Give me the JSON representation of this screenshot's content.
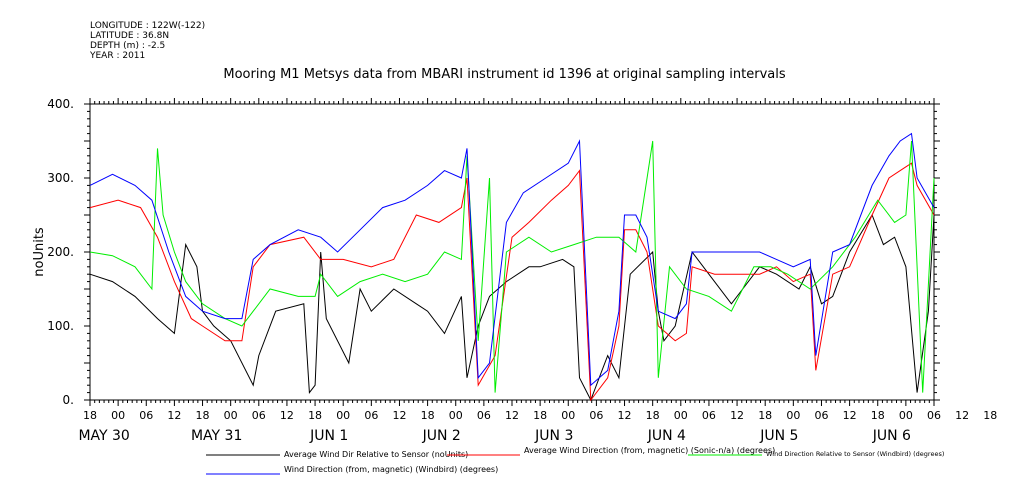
{
  "header": {
    "longitude": "LONGITUDE : 122W(-122)",
    "latitude": "LATITUDE : 36.8N",
    "depth": "DEPTH (m) : -2.5",
    "year": "YEAR : 2011"
  },
  "chart_data": {
    "type": "line",
    "title": "Mooring M1 Metsys data from MBARI instrument id 1396 at original sampling intervals",
    "ylabel": "noUnits",
    "ylim": [
      0,
      400
    ],
    "yticks": [
      0,
      100,
      200,
      300,
      400
    ],
    "xlim": [
      0,
      7.5
    ],
    "hour_ticks": [
      "18",
      "00",
      "06",
      "12",
      "18",
      "00",
      "06",
      "12",
      "18",
      "00",
      "06",
      "12",
      "18",
      "00",
      "06",
      "12",
      "18",
      "00",
      "06",
      "12",
      "18",
      "00",
      "06",
      "12",
      "18",
      "00",
      "06",
      "12",
      "18",
      "00",
      "06",
      "12",
      "18"
    ],
    "date_labels": [
      {
        "label": "MAY 30",
        "at": 0.25
      },
      {
        "label": "MAY 31",
        "at": 1.25
      },
      {
        "label": "JUN  1",
        "at": 2.25
      },
      {
        "label": "JUN  2",
        "at": 3.25
      },
      {
        "label": "JUN  3",
        "at": 4.25
      },
      {
        "label": "JUN  4",
        "at": 5.25
      },
      {
        "label": "JUN  5",
        "at": 6.25
      },
      {
        "label": "JUN  6",
        "at": 7.25
      }
    ],
    "x_unit": "days since May 29 18:00",
    "series": [
      {
        "name": "Average Wind Dir Relative to Sensor (noUnits)",
        "color": "#000000",
        "points": [
          [
            0,
            170
          ],
          [
            0.2,
            160
          ],
          [
            0.4,
            140
          ],
          [
            0.6,
            110
          ],
          [
            0.75,
            90
          ],
          [
            0.85,
            210
          ],
          [
            0.95,
            180
          ],
          [
            1.0,
            120
          ],
          [
            1.1,
            100
          ],
          [
            1.25,
            80
          ],
          [
            1.45,
            20
          ],
          [
            1.5,
            60
          ],
          [
            1.65,
            120
          ],
          [
            1.9,
            130
          ],
          [
            1.95,
            10
          ],
          [
            2.0,
            20
          ],
          [
            2.05,
            200
          ],
          [
            2.1,
            110
          ],
          [
            2.3,
            50
          ],
          [
            2.4,
            150
          ],
          [
            2.5,
            120
          ],
          [
            2.7,
            150
          ],
          [
            2.9,
            130
          ],
          [
            3.0,
            120
          ],
          [
            3.15,
            90
          ],
          [
            3.3,
            140
          ],
          [
            3.35,
            30
          ],
          [
            3.45,
            100
          ],
          [
            3.55,
            140
          ],
          [
            3.7,
            160
          ],
          [
            3.9,
            180
          ],
          [
            4.0,
            180
          ],
          [
            4.2,
            190
          ],
          [
            4.3,
            180
          ],
          [
            4.35,
            30
          ],
          [
            4.45,
            0
          ],
          [
            4.55,
            40
          ],
          [
            4.6,
            60
          ],
          [
            4.7,
            30
          ],
          [
            4.8,
            170
          ],
          [
            5.0,
            200
          ],
          [
            5.05,
            120
          ],
          [
            5.1,
            80
          ],
          [
            5.2,
            100
          ],
          [
            5.35,
            200
          ],
          [
            5.5,
            170
          ],
          [
            5.7,
            130
          ],
          [
            5.8,
            150
          ],
          [
            5.95,
            180
          ],
          [
            6.1,
            170
          ],
          [
            6.3,
            150
          ],
          [
            6.4,
            180
          ],
          [
            6.5,
            130
          ],
          [
            6.6,
            140
          ],
          [
            6.75,
            200
          ],
          [
            6.95,
            250
          ],
          [
            7.05,
            210
          ],
          [
            7.15,
            220
          ],
          [
            7.25,
            180
          ],
          [
            7.35,
            10
          ],
          [
            7.45,
            120
          ],
          [
            7.5,
            250
          ]
        ]
      },
      {
        "name": "Average Wind Direction (from, magnetic) (Sonic-n/a) (degrees)",
        "color": "#ff0000",
        "points": [
          [
            0,
            260
          ],
          [
            0.25,
            270
          ],
          [
            0.45,
            260
          ],
          [
            0.6,
            220
          ],
          [
            0.75,
            160
          ],
          [
            0.9,
            110
          ],
          [
            1.0,
            100
          ],
          [
            1.2,
            80
          ],
          [
            1.35,
            80
          ],
          [
            1.45,
            180
          ],
          [
            1.6,
            210
          ],
          [
            1.9,
            220
          ],
          [
            2.05,
            190
          ],
          [
            2.25,
            190
          ],
          [
            2.5,
            180
          ],
          [
            2.7,
            190
          ],
          [
            2.9,
            250
          ],
          [
            3.1,
            240
          ],
          [
            3.3,
            260
          ],
          [
            3.35,
            300
          ],
          [
            3.45,
            20
          ],
          [
            3.6,
            60
          ],
          [
            3.75,
            220
          ],
          [
            3.9,
            240
          ],
          [
            4.1,
            270
          ],
          [
            4.25,
            290
          ],
          [
            4.35,
            310
          ],
          [
            4.45,
            0
          ],
          [
            4.6,
            30
          ],
          [
            4.7,
            100
          ],
          [
            4.75,
            230
          ],
          [
            4.85,
            230
          ],
          [
            4.95,
            200
          ],
          [
            5.05,
            100
          ],
          [
            5.2,
            80
          ],
          [
            5.3,
            90
          ],
          [
            5.35,
            180
          ],
          [
            5.55,
            170
          ],
          [
            5.75,
            170
          ],
          [
            5.95,
            170
          ],
          [
            6.1,
            180
          ],
          [
            6.25,
            160
          ],
          [
            6.4,
            170
          ],
          [
            6.45,
            40
          ],
          [
            6.6,
            170
          ],
          [
            6.75,
            180
          ],
          [
            6.95,
            250
          ],
          [
            7.1,
            300
          ],
          [
            7.2,
            310
          ],
          [
            7.3,
            320
          ],
          [
            7.35,
            290
          ],
          [
            7.5,
            250
          ]
        ]
      },
      {
        "name": "Wind Direction Relative to Sensor (Windbird) (degrees)",
        "color": "#00ee00",
        "points": [
          [
            0,
            200
          ],
          [
            0.2,
            195
          ],
          [
            0.4,
            180
          ],
          [
            0.55,
            150
          ],
          [
            0.6,
            340
          ],
          [
            0.65,
            250
          ],
          [
            0.75,
            200
          ],
          [
            0.85,
            160
          ],
          [
            1.0,
            130
          ],
          [
            1.2,
            110
          ],
          [
            1.35,
            100
          ],
          [
            1.45,
            120
          ],
          [
            1.6,
            150
          ],
          [
            1.85,
            140
          ],
          [
            2.0,
            140
          ],
          [
            2.05,
            170
          ],
          [
            2.2,
            140
          ],
          [
            2.4,
            160
          ],
          [
            2.6,
            170
          ],
          [
            2.8,
            160
          ],
          [
            3.0,
            170
          ],
          [
            3.15,
            200
          ],
          [
            3.3,
            190
          ],
          [
            3.35,
            330
          ],
          [
            3.45,
            80
          ],
          [
            3.55,
            300
          ],
          [
            3.6,
            10
          ],
          [
            3.7,
            200
          ],
          [
            3.9,
            220
          ],
          [
            4.1,
            200
          ],
          [
            4.3,
            210
          ],
          [
            4.5,
            220
          ],
          [
            4.7,
            220
          ],
          [
            4.85,
            200
          ],
          [
            5.0,
            350
          ],
          [
            5.05,
            30
          ],
          [
            5.15,
            180
          ],
          [
            5.3,
            150
          ],
          [
            5.5,
            140
          ],
          [
            5.7,
            120
          ],
          [
            5.9,
            180
          ],
          [
            6.05,
            180
          ],
          [
            6.2,
            170
          ],
          [
            6.4,
            150
          ],
          [
            6.6,
            180
          ],
          [
            6.8,
            220
          ],
          [
            7.0,
            270
          ],
          [
            7.15,
            240
          ],
          [
            7.25,
            250
          ],
          [
            7.3,
            350
          ],
          [
            7.4,
            10
          ],
          [
            7.5,
            300
          ]
        ]
      },
      {
        "name": "Wind Direction (from, magnetic) (Windbird) (degrees)",
        "color": "#0000ff",
        "points": [
          [
            0,
            290
          ],
          [
            0.2,
            305
          ],
          [
            0.4,
            290
          ],
          [
            0.55,
            270
          ],
          [
            0.7,
            200
          ],
          [
            0.85,
            140
          ],
          [
            1.0,
            120
          ],
          [
            1.2,
            110
          ],
          [
            1.35,
            110
          ],
          [
            1.45,
            190
          ],
          [
            1.6,
            210
          ],
          [
            1.85,
            230
          ],
          [
            2.05,
            220
          ],
          [
            2.2,
            200
          ],
          [
            2.4,
            230
          ],
          [
            2.6,
            260
          ],
          [
            2.8,
            270
          ],
          [
            3.0,
            290
          ],
          [
            3.15,
            310
          ],
          [
            3.3,
            300
          ],
          [
            3.35,
            340
          ],
          [
            3.45,
            30
          ],
          [
            3.55,
            50
          ],
          [
            3.7,
            240
          ],
          [
            3.85,
            280
          ],
          [
            4.05,
            300
          ],
          [
            4.25,
            320
          ],
          [
            4.35,
            350
          ],
          [
            4.45,
            20
          ],
          [
            4.6,
            40
          ],
          [
            4.7,
            120
          ],
          [
            4.75,
            250
          ],
          [
            4.85,
            250
          ],
          [
            4.95,
            220
          ],
          [
            5.05,
            120
          ],
          [
            5.2,
            110
          ],
          [
            5.3,
            130
          ],
          [
            5.35,
            200
          ],
          [
            5.55,
            200
          ],
          [
            5.75,
            200
          ],
          [
            5.95,
            200
          ],
          [
            6.1,
            190
          ],
          [
            6.25,
            180
          ],
          [
            6.4,
            190
          ],
          [
            6.45,
            60
          ],
          [
            6.6,
            200
          ],
          [
            6.75,
            210
          ],
          [
            6.95,
            290
          ],
          [
            7.1,
            330
          ],
          [
            7.2,
            350
          ],
          [
            7.3,
            360
          ],
          [
            7.35,
            300
          ],
          [
            7.5,
            260
          ]
        ]
      }
    ]
  }
}
